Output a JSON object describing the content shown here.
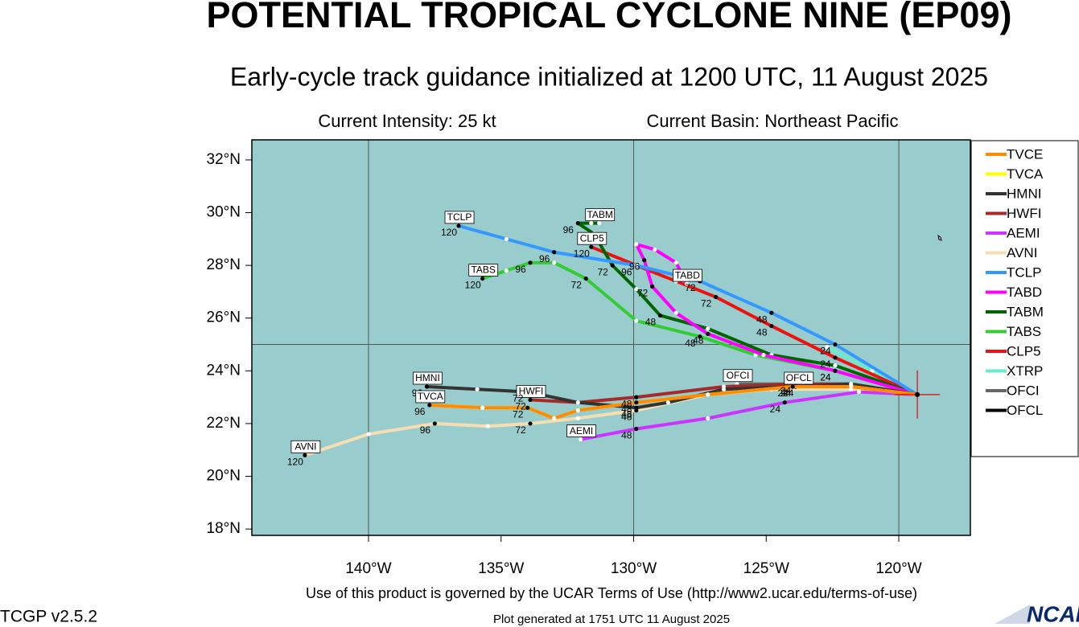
{
  "chart_data": {
    "type": "track",
    "title": "POTENTIAL TROPICAL CYCLONE NINE (EP09)",
    "subtitle": "Early-cycle track guidance initialized at 1200 UTC, 11 August 2025",
    "intensity": "Current Intensity: 25 kt",
    "basin": "Current Basin: Northeast Pacific",
    "footer": "Use of this product is governed by the UCAR Terms of Use (http://www2.ucar.edu/terms-of-use)",
    "version": "TCGP v2.5.2",
    "generated": "Plot generated at 1751 UTC   11 August 2025",
    "logo": "NCAR",
    "background": "#99cccc",
    "xlim": [
      -144.4,
      -117.3
    ],
    "ylim": [
      17.76,
      32.76
    ],
    "xticks": [
      {
        "value": -140,
        "label": "140°W"
      },
      {
        "value": -135,
        "label": "135°W"
      },
      {
        "value": -130,
        "label": "130°W"
      },
      {
        "value": -125,
        "label": "125°W"
      },
      {
        "value": -120,
        "label": "120°W"
      }
    ],
    "yticks": [
      {
        "value": 18,
        "label": "18°N"
      },
      {
        "value": 20,
        "label": "20°N"
      },
      {
        "value": 22,
        "label": "22°N"
      },
      {
        "value": 24,
        "label": "24°N"
      },
      {
        "value": 26,
        "label": "26°N"
      },
      {
        "value": 28,
        "label": "28°N"
      },
      {
        "value": 30,
        "label": "30°N"
      },
      {
        "value": 32,
        "label": "32°N"
      }
    ],
    "grid_x": [
      -140,
      -130,
      -120
    ],
    "grid_y": [
      25
    ],
    "storm_position": {
      "lon": -119.3,
      "lat": 23.1
    },
    "series": [
      {
        "name": "TVCE",
        "color": "#ff8c00",
        "end_label": false,
        "x": [
          -119.3,
          -121.8,
          -124.0,
          -127.2,
          -129.9,
          -132.1,
          -133.0,
          -134.0,
          -135.7,
          -137.7
        ],
        "values": [
          23.1,
          23.4,
          23.4,
          23.1,
          22.8,
          22.5,
          22.2,
          22.6,
          22.6,
          22.7
        ],
        "hour_labels": [
          null,
          null,
          24,
          null,
          48,
          null,
          null,
          72,
          null,
          96
        ]
      },
      {
        "name": "TVCA",
        "color": "#ffff00",
        "end_label": true,
        "x": [
          -119.3,
          -121.8,
          -124.0,
          -127.2,
          -129.9,
          -132.1,
          -133.0,
          -134.0,
          -135.7,
          -137.7
        ],
        "values": [
          23.1,
          23.4,
          23.4,
          23.1,
          22.8,
          22.5,
          22.2,
          22.6,
          22.6,
          22.7
        ],
        "hour_labels": [
          null,
          null,
          null,
          null,
          null,
          null,
          null,
          null,
          null,
          null
        ]
      },
      {
        "name": "HMNI",
        "color": "#333333",
        "end_label": true,
        "x": [
          -119.3,
          -121.8,
          -123.9,
          -126.6,
          -128.7,
          -129.9,
          -132.1,
          -134.0,
          -135.9,
          -137.8
        ],
        "values": [
          23.1,
          23.5,
          23.4,
          23.3,
          22.8,
          22.6,
          22.8,
          23.2,
          23.3,
          23.4
        ],
        "hour_labels": [
          null,
          null,
          24,
          null,
          null,
          48,
          null,
          72,
          null,
          96
        ]
      },
      {
        "name": "HWFI",
        "color": "#a52a2a",
        "end_label": true,
        "x": [
          -119.3,
          -121.8,
          -123.9,
          -126.6,
          -129.9,
          -132.1,
          -133.9
        ],
        "values": [
          23.1,
          23.5,
          23.5,
          23.4,
          23.0,
          22.8,
          22.9
        ],
        "hour_labels": [
          null,
          null,
          24,
          null,
          48,
          null,
          72
        ]
      },
      {
        "name": "AEMI",
        "color": "#cc33ff",
        "end_label": true,
        "x": [
          -119.3,
          -121.5,
          -124.3,
          -127.2,
          -129.9,
          -132.0
        ],
        "values": [
          23.1,
          23.2,
          22.8,
          22.2,
          21.8,
          21.4
        ],
        "hour_labels": [
          null,
          null,
          24,
          null,
          48,
          null
        ]
      },
      {
        "name": "AVNI",
        "color": "#f5deb3",
        "end_label": true,
        "x": [
          -119.3,
          -121.8,
          -124.8,
          -127.2,
          -129.9,
          -132.1,
          -133.9,
          -135.5,
          -137.5,
          -140.0,
          -142.4
        ],
        "values": [
          23.1,
          23.3,
          23.3,
          23.1,
          22.5,
          22.2,
          22.0,
          21.9,
          22.0,
          21.6,
          20.8
        ],
        "hour_labels": [
          null,
          null,
          null,
          null,
          48,
          null,
          72,
          null,
          96,
          null,
          120
        ]
      },
      {
        "name": "TCLP",
        "color": "#3399ff",
        "end_label": true,
        "x": [
          -119.3,
          -122.4,
          -124.8,
          -127.5,
          -129.9,
          -133.0,
          -134.8,
          -136.6
        ],
        "values": [
          23.1,
          25.0,
          26.2,
          27.4,
          28.0,
          28.5,
          29.0,
          29.5
        ],
        "hour_labels": [
          null,
          24,
          48,
          72,
          null,
          96,
          null,
          120
        ]
      },
      {
        "name": "TABD",
        "color": "#ff00ff",
        "end_label": true,
        "x": [
          -119.3,
          -122.4,
          -125.1,
          -127.2,
          -128.4,
          -129.3,
          -129.6,
          -129.9,
          -129.2,
          -128.4,
          -128.0
        ],
        "values": [
          23.1,
          24.0,
          24.6,
          25.4,
          26.2,
          27.2,
          28.2,
          28.8,
          28.6,
          28.1,
          27.3
        ],
        "hour_labels": [
          null,
          24,
          null,
          48,
          null,
          72,
          96,
          null,
          null,
          null,
          null
        ]
      },
      {
        "name": "TABM",
        "color": "#006400",
        "end_label": true,
        "x": [
          -119.3,
          -122.4,
          -124.8,
          -127.2,
          -129.0,
          -129.9,
          -130.8,
          -131.5,
          -132.1,
          -131.6,
          -131.3
        ],
        "values": [
          23.1,
          24.2,
          24.6,
          25.6,
          26.1,
          27.1,
          28.0,
          29.2,
          29.6,
          29.6,
          29.6
        ],
        "hour_labels": [
          null,
          null,
          null,
          null,
          48,
          null,
          72,
          null,
          96,
          null,
          null
        ]
      },
      {
        "name": "TABS",
        "color": "#33cc33",
        "end_label": true,
        "x": [
          -119.3,
          -122.4,
          -125.4,
          -127.5,
          -129.9,
          -131.8,
          -133.0,
          -133.9,
          -134.8,
          -135.7
        ],
        "values": [
          23.1,
          24.0,
          24.6,
          25.3,
          25.9,
          27.5,
          28.1,
          28.1,
          27.8,
          27.5
        ],
        "hour_labels": [
          null,
          24,
          null,
          48,
          null,
          72,
          null,
          96,
          null,
          120
        ]
      },
      {
        "name": "CLP5",
        "color": "#ee1111",
        "end_label": true,
        "x": [
          -119.3,
          -122.4,
          -124.8,
          -126.9,
          -128.4,
          -129.9,
          -131.6
        ],
        "values": [
          23.1,
          24.5,
          25.7,
          26.8,
          27.4,
          28.0,
          28.7
        ],
        "hour_labels": [
          null,
          24,
          48,
          72,
          null,
          96,
          120
        ]
      },
      {
        "name": "XTRP",
        "color": "#66eecc",
        "end_label": false,
        "x": [
          -119.3,
          -121.0,
          -122.7
        ],
        "values": [
          23.1,
          24.0,
          24.9
        ],
        "hour_labels": [
          null,
          null,
          null
        ]
      },
      {
        "name": "OFCI",
        "color": "#666666",
        "end_label": true,
        "x": [
          -119.3,
          -121.8,
          -123.9,
          -126.1
        ],
        "values": [
          23.1,
          23.5,
          23.5,
          23.5
        ],
        "hour_labels": [
          null,
          null,
          null,
          null
        ]
      },
      {
        "name": "OFCL",
        "color": "#000000",
        "end_label": true,
        "x": [
          -119.3,
          -121.8,
          -123.8
        ],
        "values": [
          23.1,
          23.4,
          23.4
        ],
        "hour_labels": [
          null,
          null,
          24
        ]
      }
    ]
  }
}
